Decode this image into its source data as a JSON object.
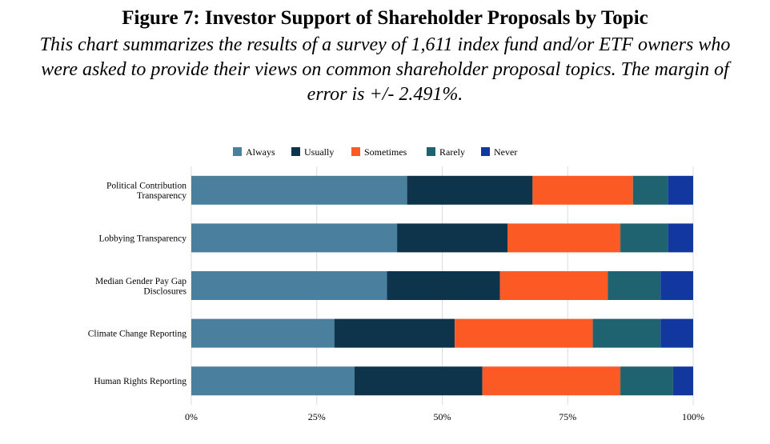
{
  "chart_data": {
    "type": "bar",
    "orientation": "horizontal",
    "stacked": true,
    "title": "Figure 7: Investor Support of Shareholder Proposals by Topic",
    "subtitle": "This chart summarizes the results of a survey of 1,611 index fund and/or ETF owners who were asked to provide their views on common shareholder proposal topics. The margin of error is +/- 2.491%.",
    "categories": [
      [
        "Political Contribution",
        "Transparency"
      ],
      [
        "Lobbying Transparency"
      ],
      [
        "Median Gender Pay Gap",
        "Disclosures"
      ],
      [
        "Climate Change Reporting"
      ],
      [
        "Human Rights Reporting"
      ]
    ],
    "series": [
      {
        "name": "Always",
        "color": "#4a7f9d",
        "values": [
          43,
          41,
          39,
          28.5,
          32.5
        ]
      },
      {
        "name": "Usually",
        "color": "#0e344c",
        "values": [
          25,
          22,
          22.5,
          24,
          25.5
        ]
      },
      {
        "name": "Sometimes",
        "color": "#fb5a25",
        "values": [
          20,
          22.5,
          21.5,
          27.5,
          27.5
        ]
      },
      {
        "name": "Rarely",
        "color": "#1f6370",
        "values": [
          7,
          9.5,
          10.5,
          13.5,
          10.5
        ]
      },
      {
        "name": "Never",
        "color": "#1238a0",
        "values": [
          5,
          5,
          6.5,
          6.5,
          4
        ]
      }
    ],
    "xlim": [
      0,
      100
    ],
    "xticks": [
      "0%",
      "25%",
      "50%",
      "75%",
      "100%"
    ],
    "legend_position": "top",
    "grid": "vertical"
  }
}
